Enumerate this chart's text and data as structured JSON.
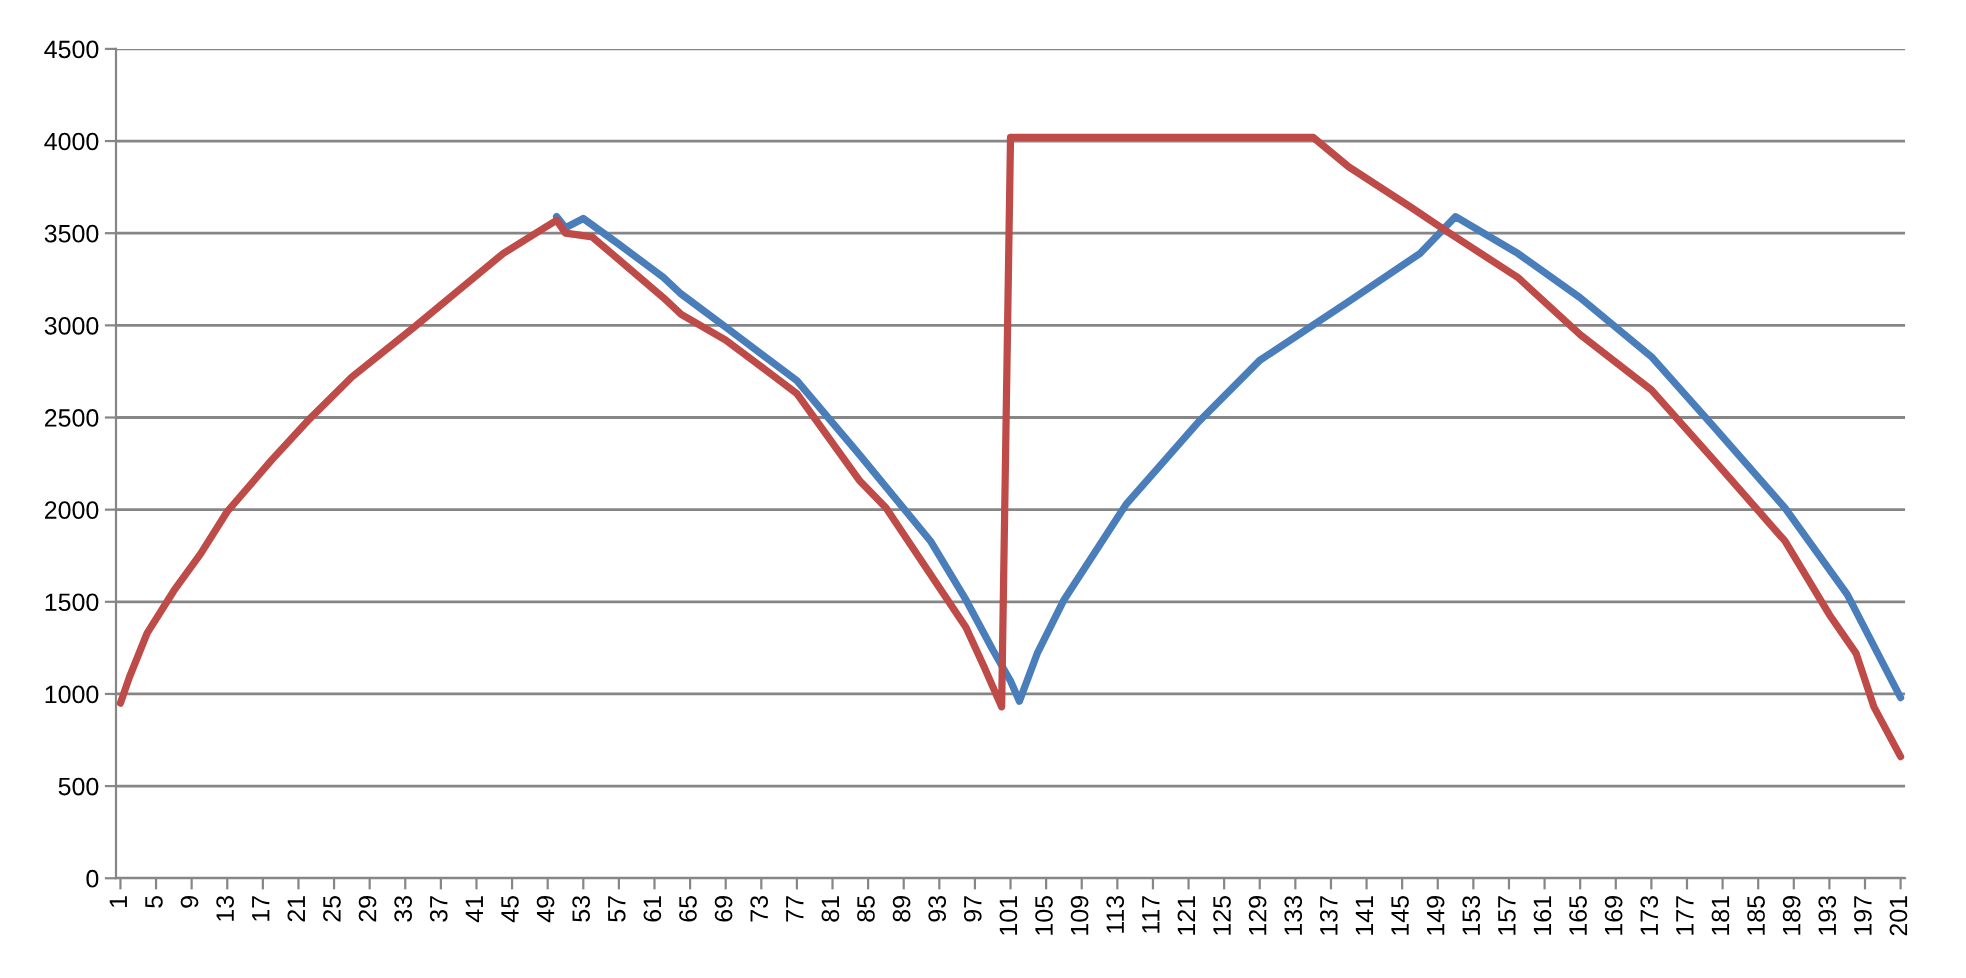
{
  "chart_data": {
    "type": "line",
    "xlim": [
      0.5,
      201.5
    ],
    "xticks": [
      1,
      5,
      9,
      13,
      17,
      21,
      25,
      29,
      33,
      37,
      41,
      45,
      49,
      53,
      57,
      61,
      65,
      69,
      73,
      77,
      81,
      85,
      89,
      93,
      97,
      101,
      105,
      109,
      113,
      117,
      121,
      125,
      129,
      133,
      137,
      141,
      145,
      149,
      153,
      157,
      161,
      165,
      169,
      173,
      177,
      181,
      185,
      189,
      193,
      197,
      201
    ],
    "ylim": [
      0,
      4500
    ],
    "yticks": [
      0,
      500,
      1000,
      1500,
      2000,
      2500,
      3000,
      3500,
      4000,
      4500
    ],
    "grid": "y",
    "marker": "none",
    "line_style": "solid",
    "series": [
      {
        "color": "#4a7ebb",
        "x": [
          50,
          51,
          53,
          57,
          62,
          64,
          69,
          77,
          84,
          92,
          96,
          99,
          101,
          102,
          104,
          107,
          114,
          122,
          129,
          139,
          147,
          151,
          158,
          165,
          173,
          180,
          188,
          195,
          201
        ],
        "values": [
          3590,
          3530,
          3580,
          3440,
          3260,
          3170,
          2990,
          2700,
          2300,
          1830,
          1510,
          1240,
          1070,
          960,
          1220,
          1510,
          2030,
          2470,
          2810,
          3130,
          3390,
          3590,
          3390,
          3150,
          2830,
          2450,
          2010,
          1540,
          980
        ]
      },
      {
        "color": "#be4b48",
        "x": [
          1,
          2,
          4,
          7,
          10,
          13,
          18,
          22,
          27,
          34,
          39,
          44,
          50,
          51,
          54,
          62,
          64,
          69,
          77,
          84,
          87,
          92,
          96,
          98,
          100,
          101,
          135,
          139,
          146,
          150,
          158,
          165,
          173,
          180,
          188,
          193,
          196,
          198,
          201
        ],
        "values": [
          950,
          1090,
          1330,
          1560,
          1760,
          1990,
          2270,
          2480,
          2720,
          2990,
          3190,
          3390,
          3570,
          3500,
          3480,
          3150,
          3060,
          2920,
          2630,
          2160,
          2010,
          1650,
          1360,
          1150,
          930,
          4020,
          4020,
          3860,
          3640,
          3510,
          3260,
          2950,
          2650,
          2270,
          1830,
          1430,
          1220,
          930,
          660
        ]
      }
    ]
  }
}
